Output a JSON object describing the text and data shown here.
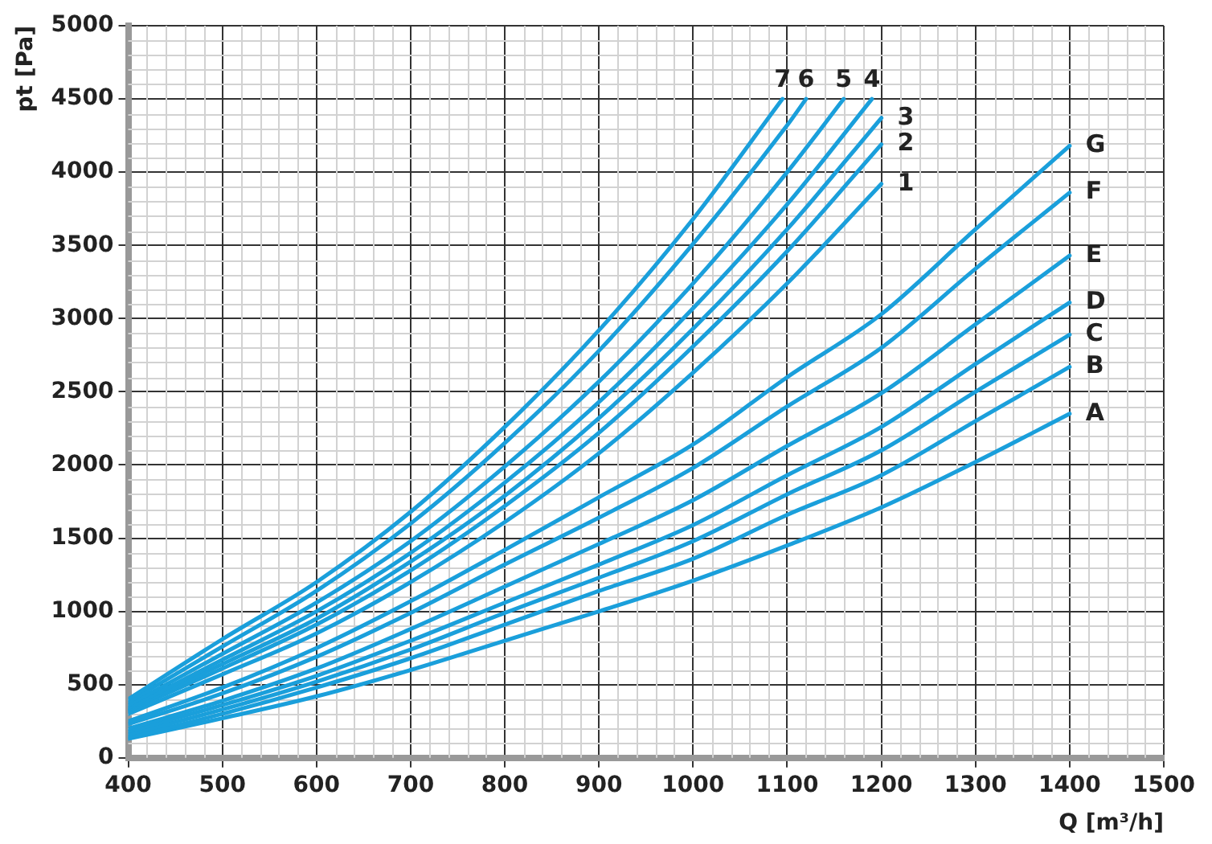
{
  "chart_data": {
    "type": "line",
    "xlabel": "Q [m³/h]",
    "ylabel": "pt [Pa]",
    "xlim": [
      400,
      1500
    ],
    "xticks": [
      400,
      500,
      600,
      700,
      800,
      900,
      1000,
      1100,
      1200,
      1300,
      1400,
      1500
    ],
    "ylim": [
      0,
      5000
    ],
    "yticks": [
      0,
      500,
      1000,
      1500,
      2000,
      2500,
      3000,
      3500,
      4000,
      4500,
      5000
    ],
    "grid": true,
    "legend": false,
    "marker": "none",
    "line_style": "solid",
    "series": [
      {
        "name": "7",
        "color": "#1a9fdb",
        "x": [
          400,
          500,
          600,
          700,
          800,
          900,
          1000,
          1095
        ],
        "values": [
          400,
          810,
          1200,
          1680,
          2260,
          2920,
          3680,
          4500
        ]
      },
      {
        "name": "6",
        "color": "#1a9fdb",
        "x": [
          400,
          500,
          600,
          700,
          800,
          900,
          1000,
          1100,
          1120
        ],
        "values": [
          380,
          760,
          1140,
          1600,
          2150,
          2780,
          3510,
          4320,
          4500
        ]
      },
      {
        "name": "5",
        "color": "#1a9fdb",
        "x": [
          400,
          500,
          600,
          700,
          800,
          900,
          1000,
          1100,
          1160
        ],
        "values": [
          360,
          710,
          1060,
          1480,
          1990,
          2570,
          3240,
          4000,
          4500
        ]
      },
      {
        "name": "4",
        "color": "#1a9fdb",
        "x": [
          400,
          500,
          600,
          700,
          800,
          900,
          1000,
          1100,
          1190
        ],
        "values": [
          340,
          670,
          1000,
          1400,
          1880,
          2430,
          3070,
          3780,
          4500
        ]
      },
      {
        "name": "3",
        "color": "#1a9fdb",
        "x": [
          400,
          500,
          600,
          700,
          800,
          900,
          1000,
          1100,
          1200
        ],
        "values": [
          330,
          640,
          950,
          1340,
          1790,
          2320,
          2930,
          3610,
          4370
        ]
      },
      {
        "name": "2",
        "color": "#1a9fdb",
        "x": [
          400,
          500,
          600,
          700,
          800,
          900,
          1000,
          1100,
          1200
        ],
        "values": [
          320,
          610,
          910,
          1280,
          1720,
          2220,
          2810,
          3460,
          4190
        ]
      },
      {
        "name": "1",
        "color": "#1a9fdb",
        "x": [
          400,
          500,
          600,
          700,
          800,
          900,
          1000,
          1100,
          1200
        ],
        "values": [
          300,
          570,
          850,
          1200,
          1610,
          2080,
          2630,
          3240,
          3920
        ]
      },
      {
        "name": "G",
        "color": "#1a9fdb",
        "x": [
          400,
          500,
          600,
          700,
          800,
          900,
          1000,
          1100,
          1200,
          1300,
          1400
        ],
        "values": [
          250,
          480,
          750,
          1070,
          1420,
          1780,
          2140,
          2600,
          3030,
          3610,
          4180
        ]
      },
      {
        "name": "F",
        "color": "#1a9fdb",
        "x": [
          400,
          500,
          600,
          700,
          800,
          900,
          1000,
          1100,
          1200,
          1300,
          1400
        ],
        "values": [
          230,
          440,
          690,
          990,
          1320,
          1640,
          1980,
          2400,
          2800,
          3340,
          3860
        ]
      },
      {
        "name": "E",
        "color": "#1a9fdb",
        "x": [
          400,
          500,
          600,
          700,
          800,
          900,
          1000,
          1100,
          1200,
          1300,
          1400
        ],
        "values": [
          200,
          390,
          610,
          880,
          1170,
          1460,
          1760,
          2130,
          2490,
          2960,
          3430
        ]
      },
      {
        "name": "D",
        "color": "#1a9fdb",
        "x": [
          400,
          500,
          600,
          700,
          800,
          900,
          1000,
          1100,
          1200,
          1300,
          1400
        ],
        "values": [
          180,
          360,
          560,
          800,
          1060,
          1320,
          1590,
          1930,
          2260,
          2690,
          3110
        ]
      },
      {
        "name": "C",
        "color": "#1a9fdb",
        "x": [
          400,
          500,
          600,
          700,
          800,
          900,
          1000,
          1100,
          1200,
          1300,
          1400
        ],
        "values": [
          160,
          330,
          520,
          740,
          990,
          1230,
          1480,
          1800,
          2100,
          2500,
          2890
        ]
      },
      {
        "name": "B",
        "color": "#1a9fdb",
        "x": [
          400,
          500,
          600,
          700,
          800,
          900,
          1000,
          1100,
          1200,
          1300,
          1400
        ],
        "values": [
          140,
          300,
          480,
          680,
          910,
          1140,
          1360,
          1660,
          1930,
          2300,
          2670
        ]
      },
      {
        "name": "A",
        "color": "#1a9fdb",
        "x": [
          400,
          500,
          600,
          700,
          800,
          900,
          1000,
          1100,
          1200,
          1300,
          1400
        ],
        "values": [
          130,
          270,
          420,
          600,
          800,
          1000,
          1210,
          1450,
          1710,
          2020,
          2350
        ]
      }
    ]
  }
}
